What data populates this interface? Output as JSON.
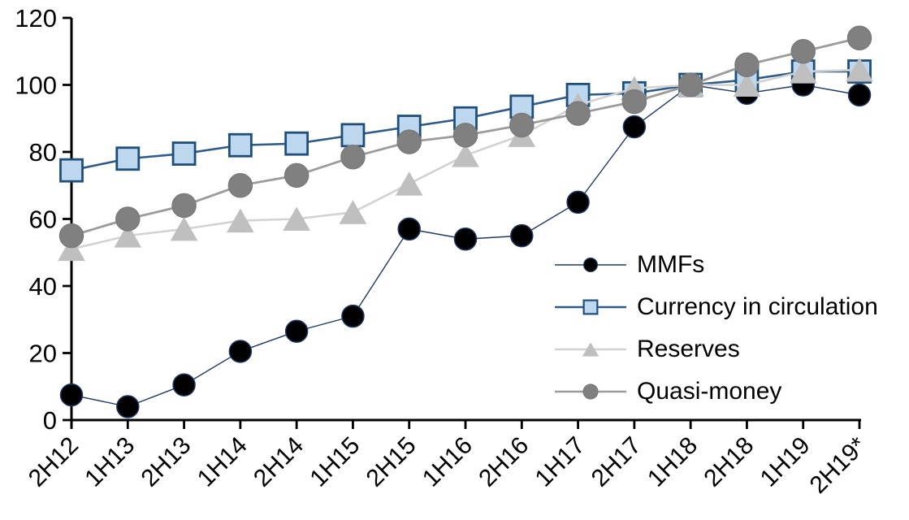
{
  "chart_data": {
    "type": "line",
    "title": "",
    "xlabel": "",
    "ylabel": "",
    "ylim": [
      0,
      120
    ],
    "yticks": [
      0,
      20,
      40,
      60,
      80,
      100,
      120
    ],
    "grid": false,
    "legend_position": "inside-right",
    "categories": [
      "2H12",
      "1H13",
      "2H13",
      "1H14",
      "2H14",
      "1H15",
      "2H15",
      "1H16",
      "2H16",
      "1H17",
      "2H17",
      "1H18",
      "2H18",
      "1H19",
      "2H19*"
    ],
    "series": [
      {
        "name": "MMFs",
        "marker": "circle",
        "marker_fill": "#000000",
        "marker_stroke": "#1F3864",
        "line_color": "#1F3864",
        "line_width": 1.4,
        "marker_size": 13.5,
        "values": [
          7.5,
          4,
          10.5,
          20.5,
          26.5,
          31,
          57,
          54,
          55,
          65,
          87.5,
          100,
          97.5,
          100,
          97
        ]
      },
      {
        "name": "Currency in circulation",
        "marker": "square",
        "marker_fill": "#BDD7EE",
        "marker_stroke": "#1F4E79",
        "line_color": "#2E5B8A",
        "line_width": 2.6,
        "marker_size": 13.5,
        "values": [
          74.5,
          78,
          79.5,
          82,
          82.5,
          85,
          87.5,
          90,
          93.5,
          97,
          97.5,
          100,
          101.5,
          104,
          104
        ]
      },
      {
        "name": "Reserves",
        "marker": "triangle",
        "marker_fill": "#BFBFBF",
        "marker_stroke": "#BFBFBF",
        "line_color": "#D2D2D2",
        "line_width": 2.6,
        "marker_size": 14,
        "values": [
          51,
          55,
          57,
          59.5,
          60,
          62,
          70.5,
          79,
          85,
          94,
          99,
          100,
          100,
          104,
          104.5
        ]
      },
      {
        "name": "Quasi-money",
        "marker": "circle",
        "marker_fill": "#808080",
        "marker_stroke": "#7A7A7A",
        "line_color": "#9B9B9B",
        "line_width": 2.8,
        "marker_size": 14.5,
        "values": [
          55,
          60,
          64,
          70,
          73,
          78.5,
          83,
          85,
          88,
          91.5,
          95,
          100,
          106,
          110,
          114
        ]
      }
    ],
    "axis_color": "#000000"
  }
}
